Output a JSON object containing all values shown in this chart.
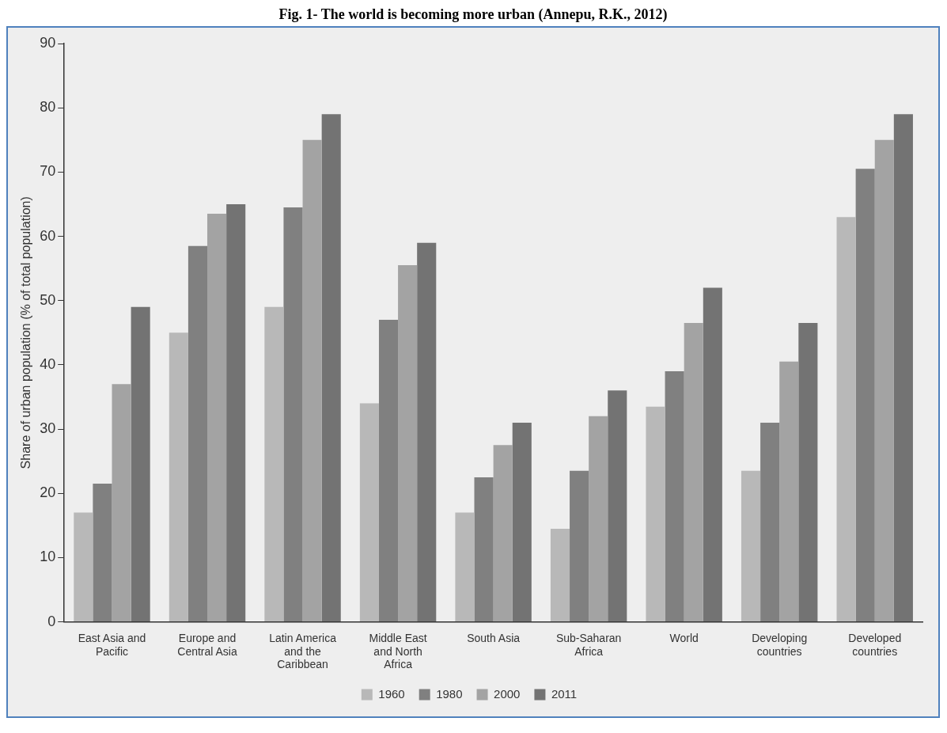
{
  "chart_data": {
    "type": "bar",
    "title": "Fig. 1- The world is becoming more urban (Annepu, R.K., 2012)",
    "ylabel": "Share of urban population (% of total population)",
    "categories": [
      "East Asia and Pacific",
      "Europe and Central Asia",
      "Latin America and the Caribbean",
      "Middle East and North Africa",
      "South Asia",
      "Sub-Saharan Africa",
      "World",
      "Developing countries",
      "Developed countries"
    ],
    "series": [
      {
        "name": "1960",
        "color": "#b8b8b8",
        "values": [
          17,
          45,
          49,
          34,
          17,
          14.5,
          33.5,
          23.5,
          63
        ]
      },
      {
        "name": "1980",
        "color": "#808080",
        "values": [
          21.5,
          58.5,
          64.5,
          47,
          22.5,
          23.5,
          39,
          31,
          70.5
        ]
      },
      {
        "name": "2000",
        "color": "#a3a3a3",
        "values": [
          37,
          63.5,
          75,
          55.5,
          27.5,
          32,
          46.5,
          40.5,
          75
        ]
      },
      {
        "name": "2011",
        "color": "#737373",
        "values": [
          49,
          65,
          79,
          59,
          31,
          36,
          52,
          46.5,
          79
        ]
      }
    ],
    "ylim": [
      0,
      90
    ],
    "yticks": [
      0,
      10,
      20,
      30,
      40,
      50,
      60,
      70,
      80,
      90
    ],
    "grid": false,
    "legend": "bottom"
  }
}
